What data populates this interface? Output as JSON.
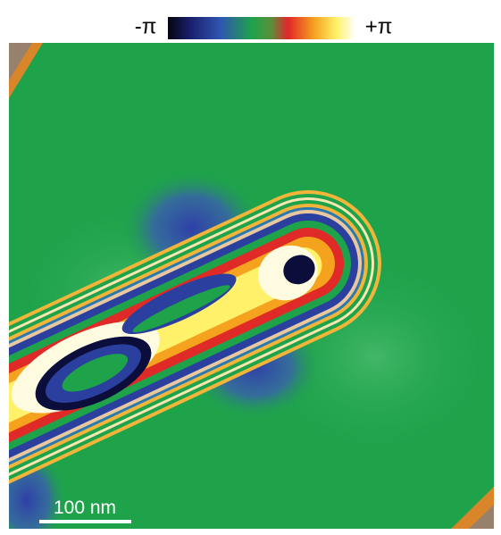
{
  "colorbar": {
    "min_label": "-π",
    "max_label": "+π"
  },
  "scale_bar": {
    "label": "100 nm"
  }
}
